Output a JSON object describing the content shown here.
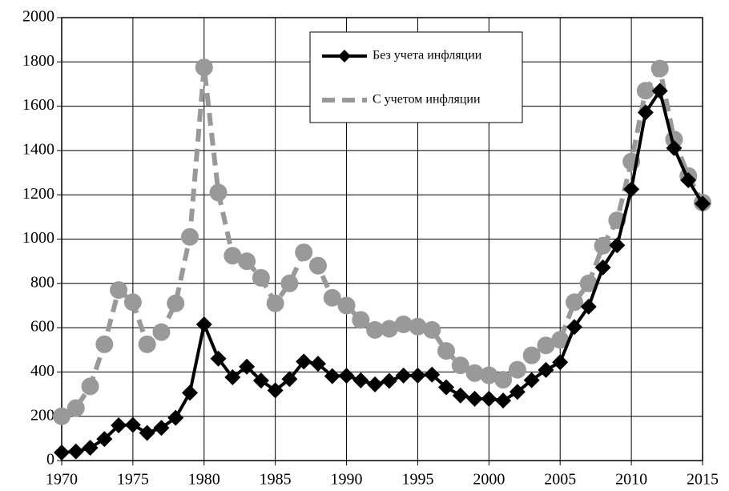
{
  "chart_data": {
    "type": "line",
    "x": [
      1970,
      1971,
      1972,
      1973,
      1974,
      1975,
      1976,
      1977,
      1978,
      1979,
      1980,
      1981,
      1982,
      1983,
      1984,
      1985,
      1986,
      1987,
      1988,
      1989,
      1990,
      1991,
      1992,
      1993,
      1994,
      1995,
      1996,
      1997,
      1998,
      1999,
      2000,
      2001,
      2002,
      2003,
      2004,
      2005,
      2006,
      2007,
      2008,
      2009,
      2010,
      2011,
      2012,
      2013,
      2014,
      2015
    ],
    "series": [
      {
        "name": "Без учета инфляции",
        "color": "#000000",
        "values": [
          36,
          41,
          58,
          97,
          159,
          161,
          125,
          148,
          193,
          306,
          615,
          460,
          376,
          424,
          361,
          317,
          368,
          447,
          437,
          381,
          383,
          362,
          344,
          360,
          384,
          384,
          388,
          331,
          294,
          279,
          279,
          271,
          310,
          363,
          409,
          444,
          603,
          695,
          872,
          972,
          1225,
          1572,
          1669,
          1411,
          1266,
          1160
        ]
      },
      {
        "name": "С учетом инфляции",
        "color": "#999999",
        "values": [
          200,
          237,
          335,
          525,
          770,
          715,
          525,
          580,
          710,
          1010,
          1775,
          1210,
          925,
          900,
          825,
          710,
          800,
          940,
          880,
          735,
          700,
          635,
          590,
          595,
          615,
          605,
          590,
          495,
          430,
          395,
          385,
          365,
          410,
          475,
          520,
          545,
          715,
          800,
          970,
          1085,
          1350,
          1670,
          1770,
          1450,
          1285,
          1165
        ]
      }
    ],
    "xlim": [
      1970,
      2015
    ],
    "xticks": [
      1970,
      1975,
      1980,
      1985,
      1990,
      1995,
      2000,
      2005,
      2010,
      2015
    ],
    "ylim": [
      0,
      2000
    ],
    "yticks": [
      0,
      200,
      400,
      600,
      800,
      1000,
      1200,
      1400,
      1600,
      1800,
      2000
    ],
    "grid": true,
    "legend": "top"
  }
}
